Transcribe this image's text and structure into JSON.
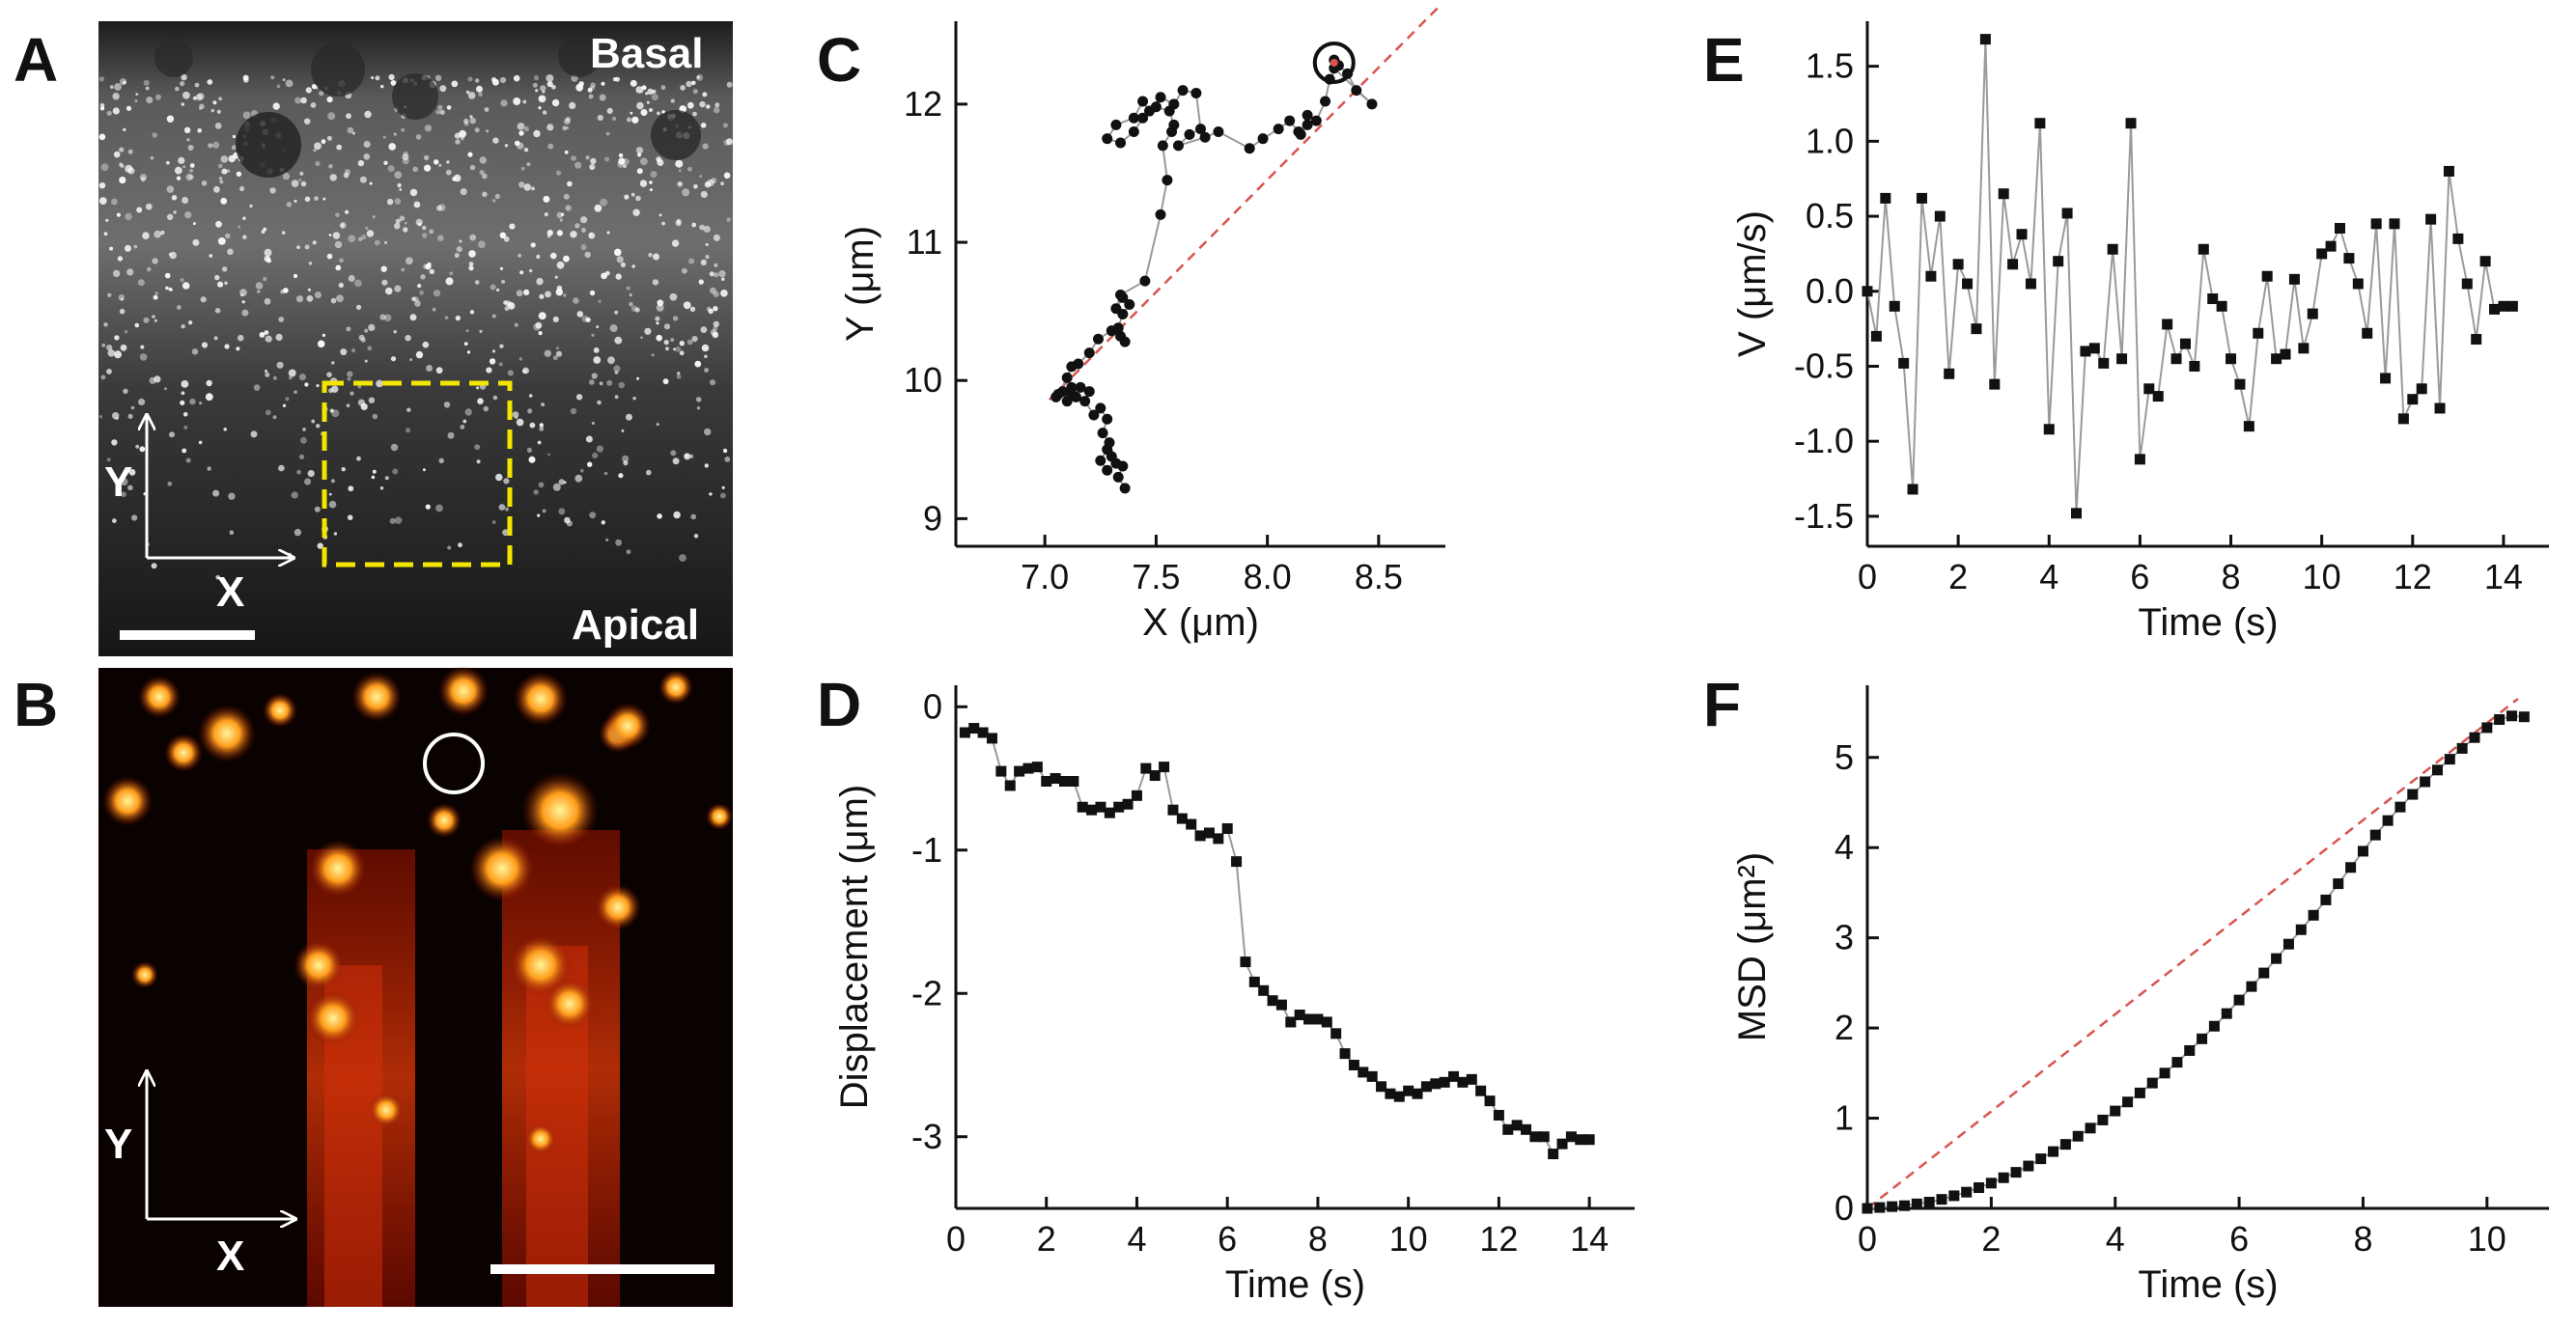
{
  "panels": {
    "A": {
      "letter": "A",
      "basal": "Basal",
      "apical": "Apical",
      "axis_y": "Y",
      "axis_x": "X"
    },
    "B": {
      "letter": "B",
      "axis_y": "Y",
      "axis_x": "X"
    },
    "C": {
      "letter": "C"
    },
    "D": {
      "letter": "D"
    },
    "E": {
      "letter": "E"
    },
    "F": {
      "letter": "F"
    }
  },
  "colors": {
    "trace": "#9a9a9a",
    "fit": "#d9534f",
    "marker": "#111111",
    "yellow_box": "#f2e600"
  },
  "chart_data": [
    {
      "panel": "C",
      "type": "scatter",
      "xlabel": "X (μm)",
      "ylabel": "Y (μm)",
      "xlim": [
        6.6,
        8.8
      ],
      "ylim": [
        8.8,
        12.6
      ],
      "xticks": [
        "7.0",
        "7.5",
        "8.0",
        "8.5"
      ],
      "xtick_values": [
        7.0,
        7.5,
        8.0,
        8.5
      ],
      "yticks": [
        "9",
        "10",
        "11",
        "12"
      ],
      "ytick_values": [
        9,
        10,
        11,
        12
      ],
      "x": [
        7.36,
        7.33,
        7.35,
        7.3,
        7.28,
        7.25,
        7.28,
        7.32,
        7.29,
        7.26,
        7.28,
        7.25,
        7.22,
        7.18,
        7.2,
        7.16,
        7.12,
        7.1,
        7.14,
        7.12,
        7.08,
        7.05,
        7.06,
        7.1,
        7.12,
        7.15,
        7.2,
        7.24,
        7.3,
        7.34,
        7.36,
        7.33,
        7.35,
        7.38,
        7.35,
        7.32,
        7.34,
        7.45,
        7.52,
        7.55,
        7.53,
        7.57,
        7.58,
        7.56,
        7.5,
        7.44,
        7.4,
        7.34,
        7.28,
        7.32,
        7.4,
        7.44,
        7.47,
        7.52,
        7.58,
        7.62,
        7.68,
        7.7,
        7.65,
        7.6,
        7.72,
        7.78,
        7.92,
        7.98,
        8.05,
        8.1,
        8.14,
        8.18,
        8.15,
        8.18,
        8.22,
        8.26,
        8.28,
        8.32,
        8.3,
        8.36,
        8.4,
        8.47,
        8.3
      ],
      "y": [
        9.22,
        9.3,
        9.38,
        9.45,
        9.5,
        9.42,
        9.35,
        9.4,
        9.55,
        9.62,
        9.72,
        9.8,
        9.75,
        9.85,
        9.92,
        9.95,
        9.9,
        9.85,
        9.88,
        9.95,
        9.92,
        9.88,
        9.9,
        10.02,
        10.1,
        10.12,
        10.2,
        10.3,
        10.36,
        10.32,
        10.28,
        10.38,
        10.48,
        10.55,
        10.6,
        10.52,
        10.62,
        10.72,
        11.2,
        11.45,
        11.7,
        11.8,
        11.85,
        11.95,
        11.98,
        11.9,
        11.8,
        11.72,
        11.75,
        11.85,
        11.9,
        12.02,
        11.95,
        12.05,
        12.0,
        12.1,
        12.08,
        11.82,
        11.78,
        11.7,
        11.76,
        11.8,
        11.68,
        11.75,
        11.82,
        11.88,
        11.8,
        11.85,
        11.78,
        11.92,
        11.88,
        12.02,
        12.18,
        12.28,
        12.32,
        12.22,
        12.1,
        12.0,
        12.26
      ],
      "fit": {
        "x": [
          7.02,
          8.78
        ],
        "y": [
          9.86,
          12.72
        ]
      },
      "highlight": {
        "x": 8.3,
        "y": 12.3
      }
    },
    {
      "panel": "D",
      "type": "line",
      "xlabel": "Time (s)",
      "ylabel": "Displacement (μm)",
      "xlim": [
        0,
        15
      ],
      "ylim": [
        -3.5,
        0.15
      ],
      "xticks": [
        "0",
        "2",
        "4",
        "6",
        "8",
        "10",
        "12",
        "14"
      ],
      "xtick_values": [
        0,
        2,
        4,
        6,
        8,
        10,
        12,
        14
      ],
      "yticks": [
        "0",
        "-1",
        "-2",
        "-3"
      ],
      "ytick_values": [
        0,
        -1,
        -2,
        -3
      ],
      "x": [
        0.2,
        0.4,
        0.6,
        0.8,
        1.0,
        1.2,
        1.4,
        1.6,
        1.8,
        2.0,
        2.2,
        2.4,
        2.6,
        2.8,
        3.0,
        3.2,
        3.4,
        3.6,
        3.8,
        4.0,
        4.2,
        4.4,
        4.6,
        4.8,
        5.0,
        5.2,
        5.4,
        5.6,
        5.8,
        6.0,
        6.2,
        6.4,
        6.6,
        6.8,
        7.0,
        7.2,
        7.4,
        7.6,
        7.8,
        8.0,
        8.2,
        8.4,
        8.6,
        8.8,
        9.0,
        9.2,
        9.4,
        9.6,
        9.8,
        10.0,
        10.2,
        10.4,
        10.6,
        10.8,
        11.0,
        11.2,
        11.4,
        11.6,
        11.8,
        12.0,
        12.2,
        12.4,
        12.6,
        12.8,
        13.0,
        13.2,
        13.4,
        13.6,
        13.8,
        14.0
      ],
      "values": [
        -0.18,
        -0.15,
        -0.18,
        -0.22,
        -0.45,
        -0.55,
        -0.45,
        -0.43,
        -0.42,
        -0.52,
        -0.5,
        -0.52,
        -0.52,
        -0.7,
        -0.72,
        -0.7,
        -0.74,
        -0.7,
        -0.68,
        -0.62,
        -0.43,
        -0.48,
        -0.42,
        -0.72,
        -0.78,
        -0.82,
        -0.9,
        -0.88,
        -0.92,
        -0.85,
        -1.08,
        -1.78,
        -1.92,
        -1.98,
        -2.05,
        -2.08,
        -2.2,
        -2.15,
        -2.18,
        -2.18,
        -2.2,
        -2.28,
        -2.42,
        -2.5,
        -2.55,
        -2.58,
        -2.65,
        -2.7,
        -2.72,
        -2.68,
        -2.7,
        -2.65,
        -2.63,
        -2.62,
        -2.58,
        -2.62,
        -2.6,
        -2.68,
        -2.75,
        -2.85,
        -2.95,
        -2.92,
        -2.95,
        -3.0,
        -3.0,
        -3.12,
        -3.05,
        -3.0,
        -3.02,
        -3.02
      ]
    },
    {
      "panel": "E",
      "type": "line",
      "xlabel": "Time (s)",
      "ylabel": "V (μm/s)",
      "xlim": [
        0,
        15
      ],
      "ylim": [
        -1.7,
        1.8
      ],
      "xticks": [
        "0",
        "2",
        "4",
        "6",
        "8",
        "10",
        "12",
        "14"
      ],
      "xtick_values": [
        0,
        2,
        4,
        6,
        8,
        10,
        12,
        14
      ],
      "yticks": [
        "1.5",
        "1.0",
        "0.5",
        "0.0",
        "-0.5",
        "-1.0",
        "-1.5"
      ],
      "ytick_values": [
        1.5,
        1.0,
        0.5,
        0.0,
        -0.5,
        -1.0,
        -1.5
      ],
      "x": [
        0.0,
        0.2,
        0.4,
        0.6,
        0.8,
        1.0,
        1.2,
        1.4,
        1.6,
        1.8,
        2.0,
        2.2,
        2.4,
        2.6,
        2.8,
        3.0,
        3.2,
        3.4,
        3.6,
        3.8,
        4.0,
        4.2,
        4.4,
        4.6,
        4.8,
        5.0,
        5.2,
        5.4,
        5.6,
        5.8,
        6.0,
        6.2,
        6.4,
        6.6,
        6.8,
        7.0,
        7.2,
        7.4,
        7.6,
        7.8,
        8.0,
        8.2,
        8.4,
        8.6,
        8.8,
        9.0,
        9.2,
        9.4,
        9.6,
        9.8,
        10.0,
        10.2,
        10.4,
        10.6,
        10.8,
        11.0,
        11.2,
        11.4,
        11.6,
        11.8,
        12.0,
        12.2,
        12.4,
        12.6,
        12.8,
        13.0,
        13.2,
        13.4,
        13.6,
        13.8,
        14.0,
        14.2
      ],
      "values": [
        0.0,
        -0.3,
        0.62,
        -0.1,
        -0.48,
        -1.32,
        0.62,
        0.1,
        0.5,
        -0.55,
        0.18,
        0.05,
        -0.25,
        1.68,
        -0.62,
        0.65,
        0.18,
        0.38,
        0.05,
        1.12,
        -0.92,
        0.2,
        0.52,
        -1.48,
        -0.4,
        -0.38,
        -0.48,
        0.28,
        -0.45,
        1.12,
        -1.12,
        -0.65,
        -0.7,
        -0.22,
        -0.45,
        -0.35,
        -0.5,
        0.28,
        -0.05,
        -0.1,
        -0.45,
        -0.62,
        -0.9,
        -0.28,
        0.1,
        -0.45,
        -0.42,
        0.08,
        -0.38,
        -0.15,
        0.25,
        0.3,
        0.42,
        0.22,
        0.05,
        -0.28,
        0.45,
        -0.58,
        0.45,
        -0.85,
        -0.72,
        -0.65,
        0.48,
        -0.78,
        0.8,
        0.35,
        0.05,
        -0.32,
        0.2,
        -0.12,
        -0.1,
        -0.1
      ]
    },
    {
      "panel": "F",
      "type": "line",
      "xlabel": "Time (s)",
      "ylabel": "MSD (μm²)",
      "xlim": [
        0,
        11
      ],
      "ylim": [
        0,
        5.8
      ],
      "xticks": [
        "0",
        "2",
        "4",
        "6",
        "8",
        "10"
      ],
      "xtick_values": [
        0,
        2,
        4,
        6,
        8,
        10
      ],
      "yticks": [
        "0",
        "1",
        "2",
        "3",
        "4",
        "5"
      ],
      "ytick_values": [
        0,
        1,
        2,
        3,
        4,
        5
      ],
      "x": [
        0.0,
        0.2,
        0.4,
        0.6,
        0.8,
        1.0,
        1.2,
        1.4,
        1.6,
        1.8,
        2.0,
        2.2,
        2.4,
        2.6,
        2.8,
        3.0,
        3.2,
        3.4,
        3.6,
        3.8,
        4.0,
        4.2,
        4.4,
        4.6,
        4.8,
        5.0,
        5.2,
        5.4,
        5.6,
        5.8,
        6.0,
        6.2,
        6.4,
        6.6,
        6.8,
        7.0,
        7.2,
        7.4,
        7.6,
        7.8,
        8.0,
        8.2,
        8.4,
        8.6,
        8.8,
        9.0,
        9.2,
        9.4,
        9.6,
        9.8,
        10.0,
        10.2,
        10.4,
        10.6
      ],
      "values": [
        0.0,
        0.01,
        0.02,
        0.03,
        0.05,
        0.07,
        0.1,
        0.14,
        0.18,
        0.23,
        0.28,
        0.34,
        0.4,
        0.47,
        0.55,
        0.63,
        0.71,
        0.8,
        0.89,
        0.98,
        1.08,
        1.18,
        1.28,
        1.39,
        1.5,
        1.62,
        1.75,
        1.88,
        2.02,
        2.16,
        2.31,
        2.46,
        2.61,
        2.77,
        2.93,
        3.09,
        3.25,
        3.42,
        3.6,
        3.78,
        3.96,
        4.14,
        4.3,
        4.45,
        4.59,
        4.73,
        4.86,
        4.98,
        5.1,
        5.22,
        5.33,
        5.42,
        5.46,
        5.45
      ],
      "fit": {
        "x": [
          0,
          10.5
        ],
        "y": [
          0,
          5.65
        ]
      }
    }
  ]
}
